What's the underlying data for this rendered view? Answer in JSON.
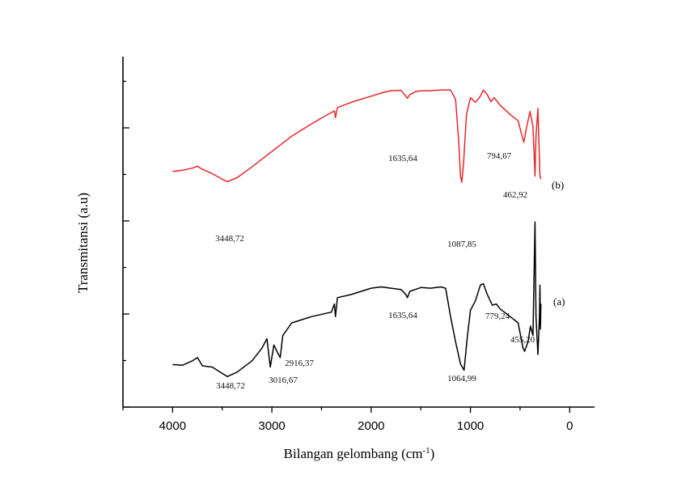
{
  "chart_data": {
    "type": "line",
    "title": "",
    "xlabel": "Bilangan gelombang (cm",
    "xlabel_sup": "-1",
    "xlabel_end": ")",
    "ylabel": "Transmitansi (a.u)",
    "xlim": [
      4500,
      -250
    ],
    "x_reversed": true,
    "y_tick_labels_shown": false,
    "x_ticks": [
      "4000",
      "3000",
      "2000",
      "1000",
      "0"
    ],
    "x_tick_values": [
      4000,
      3000,
      2000,
      1000,
      0
    ],
    "grid": false,
    "series": [
      {
        "name": "(b)",
        "color": "#e8262a",
        "peaks": [
          "3448,72",
          "1635,64",
          "1087,85",
          "794,67",
          "462,92"
        ],
        "points": [
          [
            4000,
            -0.05
          ],
          [
            3900,
            -0.01
          ],
          [
            3800,
            0.06
          ],
          [
            3750,
            0.12
          ],
          [
            3700,
            0.02
          ],
          [
            3600,
            -0.12
          ],
          [
            3500,
            -0.3
          ],
          [
            3448,
            -0.38
          ],
          [
            3350,
            -0.25
          ],
          [
            3200,
            0.1
          ],
          [
            3000,
            0.6
          ],
          [
            2800,
            1.1
          ],
          [
            2600,
            1.5
          ],
          [
            2450,
            1.78
          ],
          [
            2370,
            1.92
          ],
          [
            2360,
            1.7
          ],
          [
            2340,
            2.03
          ],
          [
            2200,
            2.2
          ],
          [
            2000,
            2.4
          ],
          [
            1900,
            2.5
          ],
          [
            1800,
            2.58
          ],
          [
            1700,
            2.59
          ],
          [
            1650,
            2.4
          ],
          [
            1635,
            2.33
          ],
          [
            1610,
            2.45
          ],
          [
            1550,
            2.55
          ],
          [
            1500,
            2.57
          ],
          [
            1400,
            2.58
          ],
          [
            1300,
            2.6
          ],
          [
            1200,
            2.6
          ],
          [
            1150,
            2.3
          ],
          [
            1120,
            1.0
          ],
          [
            1100,
            -0.2
          ],
          [
            1087,
            -0.4
          ],
          [
            1070,
            0.2
          ],
          [
            1040,
            1.8
          ],
          [
            1000,
            2.35
          ],
          [
            950,
            2.2
          ],
          [
            900,
            2.4
          ],
          [
            870,
            2.6
          ],
          [
            830,
            2.45
          ],
          [
            794,
            2.22
          ],
          [
            760,
            2.35
          ],
          [
            700,
            2.1
          ],
          [
            600,
            1.8
          ],
          [
            520,
            1.6
          ],
          [
            480,
            1.1
          ],
          [
            462,
            0.9
          ],
          [
            440,
            1.3
          ],
          [
            400,
            1.9
          ],
          [
            370,
            1.4
          ],
          [
            350,
            -0.2
          ],
          [
            340,
            1.1
          ],
          [
            320,
            2.0
          ],
          [
            300,
            -0.2
          ],
          [
            290,
            -0.3
          ]
        ]
      },
      {
        "name": "(a)",
        "color": "#000000",
        "peaks": [
          "3448,72",
          "3016,67",
          "2916,37",
          "1635,64",
          "1064,99",
          "779,24",
          "455,20"
        ],
        "points": [
          [
            4000,
            -1.16
          ],
          [
            3900,
            -1.17
          ],
          [
            3800,
            -1.1
          ],
          [
            3750,
            -1.05
          ],
          [
            3700,
            -1.18
          ],
          [
            3600,
            -1.2
          ],
          [
            3500,
            -1.3
          ],
          [
            3448,
            -1.35
          ],
          [
            3350,
            -1.28
          ],
          [
            3200,
            -1.1
          ],
          [
            3100,
            -0.9
          ],
          [
            3050,
            -0.75
          ],
          [
            3016,
            -1.2
          ],
          [
            2980,
            -0.85
          ],
          [
            2940,
            -0.98
          ],
          [
            2916,
            -1.05
          ],
          [
            2890,
            -0.7
          ],
          [
            2800,
            -0.5
          ],
          [
            2600,
            -0.4
          ],
          [
            2400,
            -0.33
          ],
          [
            2370,
            -0.2
          ],
          [
            2360,
            -0.4
          ],
          [
            2340,
            -0.1
          ],
          [
            2200,
            -0.05
          ],
          [
            2000,
            0.05
          ],
          [
            1900,
            0.07
          ],
          [
            1800,
            0.05
          ],
          [
            1700,
            0.03
          ],
          [
            1650,
            -0.05
          ],
          [
            1635,
            -0.1
          ],
          [
            1610,
            0.0
          ],
          [
            1500,
            0.06
          ],
          [
            1400,
            0.05
          ],
          [
            1300,
            0.07
          ],
          [
            1250,
            0.05
          ],
          [
            1200,
            -0.4
          ],
          [
            1150,
            -0.8
          ],
          [
            1100,
            -1.15
          ],
          [
            1064,
            -1.25
          ],
          [
            1030,
            -0.7
          ],
          [
            1000,
            -0.3
          ],
          [
            950,
            -0.15
          ],
          [
            900,
            0.1
          ],
          [
            870,
            0.12
          ],
          [
            830,
            -0.05
          ],
          [
            779,
            -0.22
          ],
          [
            740,
            -0.2
          ],
          [
            700,
            -0.28
          ],
          [
            600,
            -0.4
          ],
          [
            520,
            -0.5
          ],
          [
            470,
            -0.9
          ],
          [
            455,
            -0.95
          ],
          [
            420,
            -0.8
          ],
          [
            395,
            -0.55
          ],
          [
            370,
            -0.7
          ],
          [
            350,
            1.1
          ],
          [
            340,
            -0.4
          ],
          [
            320,
            -1.0
          ],
          [
            305,
            -0.4
          ],
          [
            300,
            0.1
          ],
          [
            295,
            -0.6
          ],
          [
            290,
            -0.2
          ]
        ]
      }
    ]
  }
}
